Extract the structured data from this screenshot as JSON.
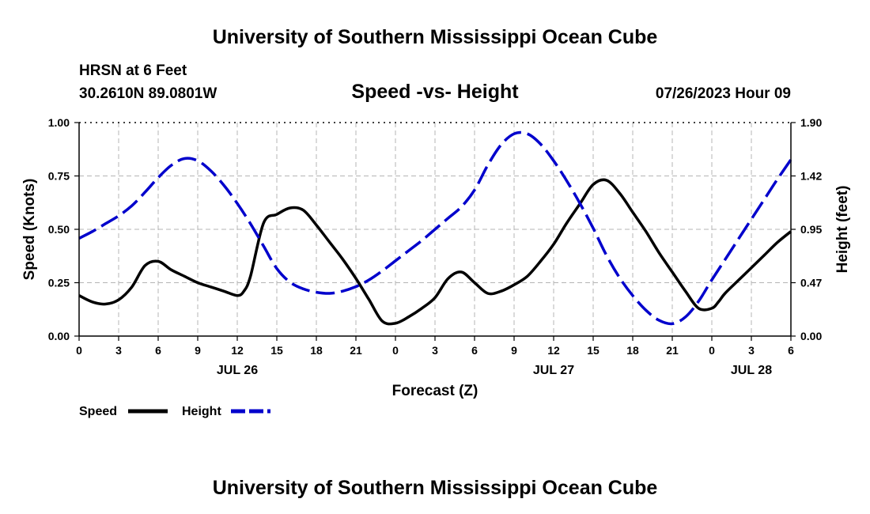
{
  "header": {
    "title": "University of Southern Mississippi Ocean Cube",
    "station": "HRSN at 6 Feet",
    "coords": "30.2610N  89.0801W",
    "datetime": "07/26/2023 Hour 09",
    "footer_title": "University of Southern Mississippi Ocean Cube"
  },
  "legend": {
    "speed_label": "Speed",
    "height_label": "Height"
  },
  "colors": {
    "speed": "#000000",
    "height": "#0000cc",
    "grid": "#b4b4b4"
  },
  "chart_data": {
    "type": "line",
    "title": "Speed -vs- Height",
    "xlabel": "Forecast (Z)",
    "ylabel": "Speed (Knots)",
    "y2label": "Height (feet)",
    "xlim": [
      0,
      54
    ],
    "ylim": [
      0,
      1.0
    ],
    "y2lim": [
      0,
      1.9
    ],
    "x_ticks": [
      0,
      3,
      6,
      9,
      12,
      15,
      18,
      21,
      24,
      27,
      30,
      33,
      36,
      39,
      42,
      45,
      48,
      51,
      54
    ],
    "x_tick_labels": [
      "0",
      "3",
      "6",
      "9",
      "12",
      "15",
      "18",
      "21",
      "0",
      "3",
      "6",
      "9",
      "12",
      "15",
      "18",
      "21",
      "0",
      "3",
      "6"
    ],
    "day_labels": [
      {
        "x": 12,
        "label": "JUL 26"
      },
      {
        "x": 36,
        "label": "JUL 27"
      },
      {
        "x": 51,
        "label": "JUL 28"
      }
    ],
    "y_ticks": [
      0,
      0.25,
      0.5,
      0.75,
      1.0
    ],
    "y_tick_labels": [
      "0.00",
      "0.25",
      "0.50",
      "0.75",
      "1.00"
    ],
    "y2_ticks": [
      0,
      0.475,
      0.95,
      1.425,
      1.9
    ],
    "y2_tick_labels": [
      "0.00",
      "0.47",
      "0.95",
      "1.42",
      "1.90"
    ],
    "grid": true,
    "series": [
      {
        "name": "Speed",
        "axis": "left",
        "style": "solid",
        "x": [
          0,
          1,
          2,
          3,
          4,
          5,
          6,
          7,
          8,
          9,
          10,
          11,
          12,
          12.5,
          13,
          14,
          15,
          16,
          17,
          18,
          19,
          20,
          21,
          22,
          23,
          24,
          25,
          26,
          27,
          28,
          29,
          30,
          31,
          32,
          33,
          34,
          35,
          36,
          37,
          38,
          39,
          40,
          41,
          42,
          43,
          44,
          45,
          46,
          47,
          48,
          48.5,
          49,
          50,
          51,
          52,
          53,
          54
        ],
        "values": [
          0.19,
          0.16,
          0.15,
          0.17,
          0.23,
          0.33,
          0.35,
          0.31,
          0.28,
          0.25,
          0.23,
          0.21,
          0.19,
          0.21,
          0.28,
          0.53,
          0.57,
          0.6,
          0.59,
          0.52,
          0.44,
          0.36,
          0.27,
          0.17,
          0.07,
          0.06,
          0.09,
          0.13,
          0.18,
          0.27,
          0.3,
          0.25,
          0.2,
          0.21,
          0.24,
          0.28,
          0.35,
          0.43,
          0.53,
          0.62,
          0.71,
          0.73,
          0.67,
          0.58,
          0.49,
          0.39,
          0.3,
          0.21,
          0.13,
          0.13,
          0.16,
          0.2,
          0.26,
          0.32,
          0.38,
          0.44,
          0.49
        ]
      },
      {
        "name": "Height",
        "axis": "right",
        "style": "dashed",
        "x": [
          0,
          1,
          2,
          3,
          4,
          5,
          6,
          7,
          8,
          9,
          10,
          11,
          12,
          13,
          14,
          15,
          16,
          17,
          18,
          19,
          20,
          21,
          22,
          23,
          24,
          25,
          26,
          27,
          28,
          29,
          30,
          31,
          32,
          33,
          34,
          35,
          36,
          37,
          38,
          39,
          40,
          41,
          42,
          43,
          44,
          45,
          46,
          47,
          48,
          49,
          50,
          51,
          52,
          53,
          54
        ],
        "values": [
          0.87,
          0.93,
          1.0,
          1.07,
          1.16,
          1.28,
          1.41,
          1.52,
          1.58,
          1.56,
          1.47,
          1.34,
          1.18,
          1.0,
          0.8,
          0.6,
          0.48,
          0.42,
          0.39,
          0.38,
          0.4,
          0.44,
          0.5,
          0.58,
          0.67,
          0.76,
          0.85,
          0.95,
          1.05,
          1.15,
          1.3,
          1.52,
          1.7,
          1.8,
          1.8,
          1.71,
          1.56,
          1.38,
          1.18,
          0.96,
          0.72,
          0.52,
          0.36,
          0.23,
          0.14,
          0.11,
          0.17,
          0.31,
          0.5,
          0.68,
          0.86,
          1.04,
          1.22,
          1.4,
          1.57
        ]
      }
    ]
  }
}
